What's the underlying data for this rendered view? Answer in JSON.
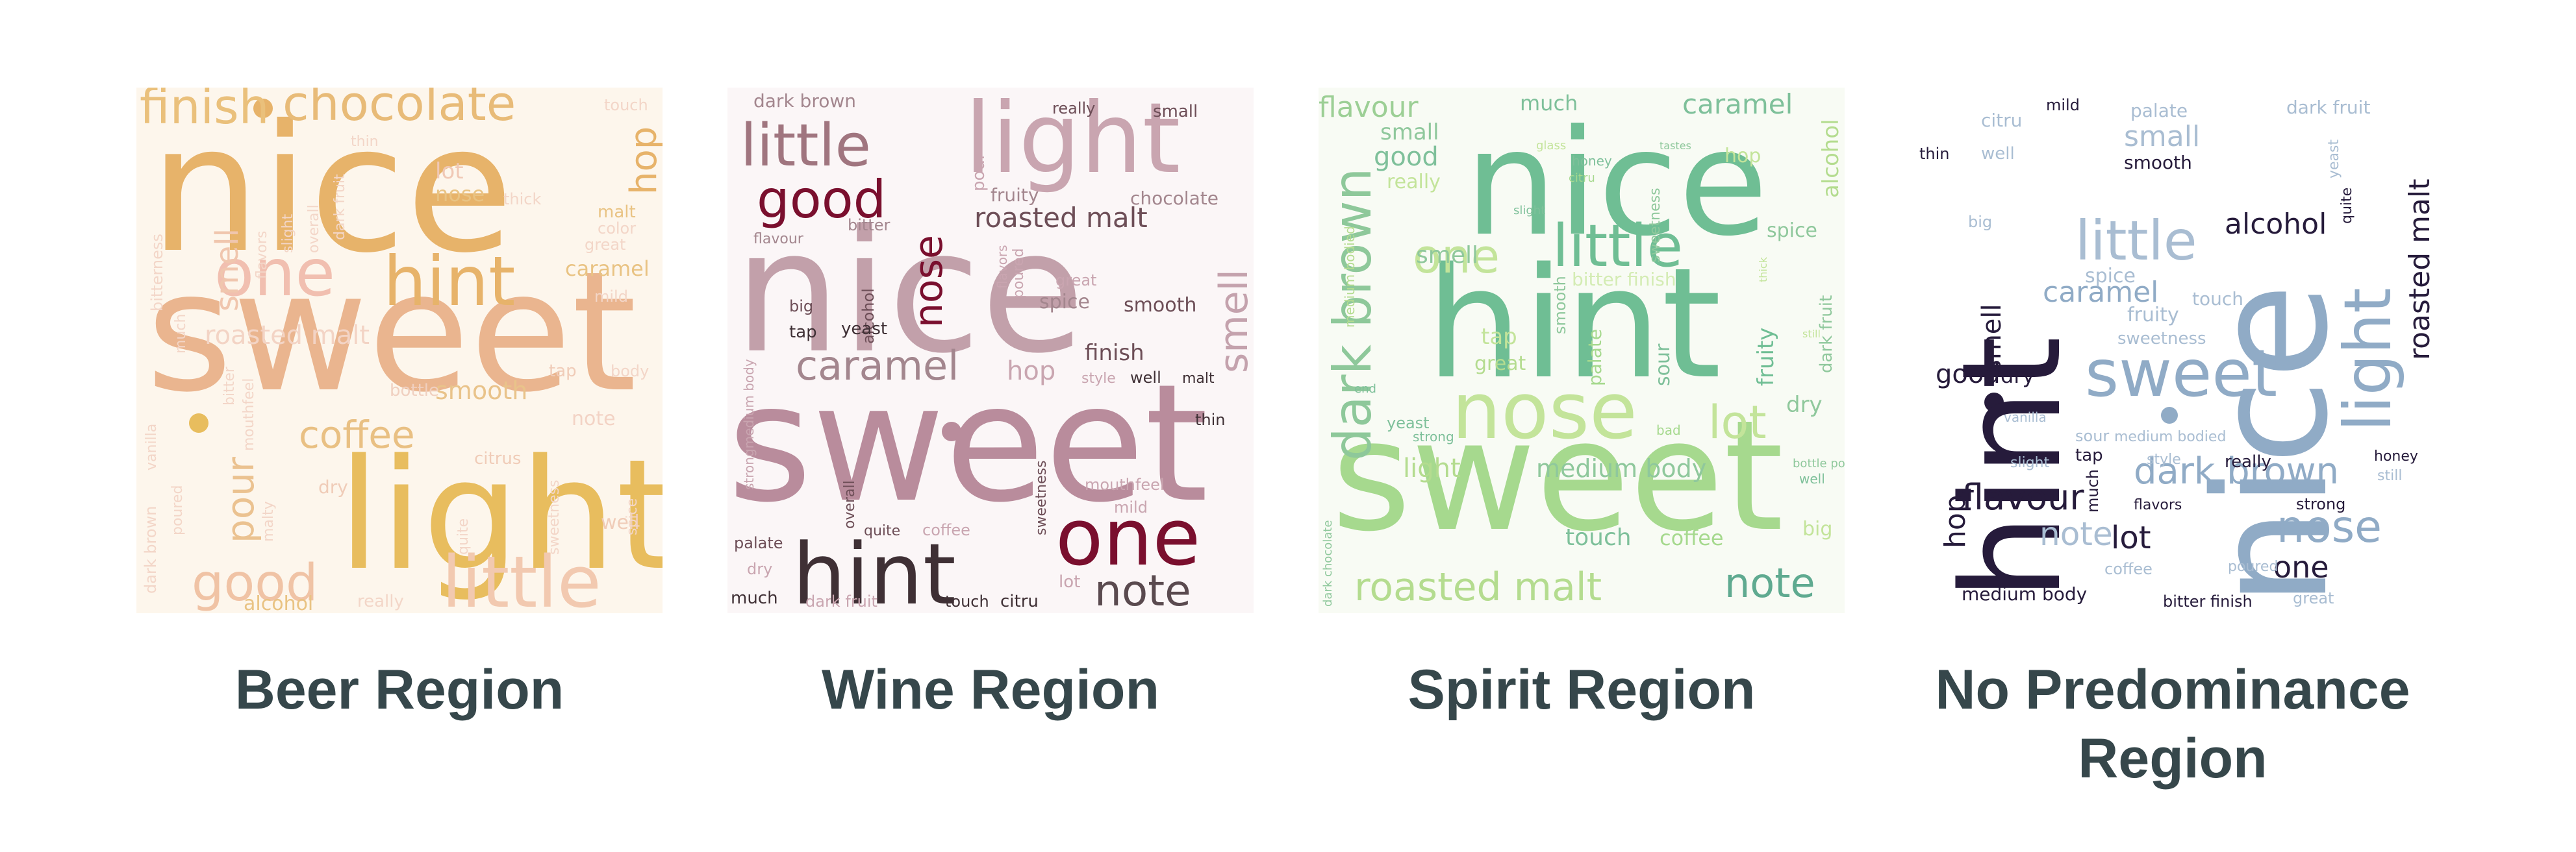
{
  "panels": [
    {
      "caption": [
        "Beer Region"
      ],
      "background": "#fdf6ec",
      "words": [
        {
          "t": "nice",
          "s": 270,
          "c": "#e7b36a"
        },
        {
          "t": "sweet",
          "s": 255,
          "c": "#eab58f"
        },
        {
          "t": "light",
          "s": 235,
          "c": "#e8bd5e"
        },
        {
          "t": "little",
          "s": 110,
          "c": "#f2c9b0"
        },
        {
          "t": "hint",
          "s": 105,
          "c": "#e7b36a"
        },
        {
          "t": "one",
          "s": 100,
          "c": "#f1bfb0"
        },
        {
          "t": "chocolate",
          "s": 74,
          "c": "#e8bb78"
        },
        {
          "t": "finish",
          "s": 74,
          "c": "#eac07b"
        },
        {
          "t": "good",
          "s": 78,
          "c": "#f0c3a5"
        },
        {
          "t": "coffee",
          "s": 58,
          "c": "#e9c083"
        },
        {
          "t": "pour",
          "s": 58,
          "c": "#ebc290"
        },
        {
          "t": "hop",
          "s": 56,
          "c": "#e7b36a",
          "r": -90
        },
        {
          "t": "smell",
          "s": 48,
          "c": "#f0c6ae",
          "r": -90
        },
        {
          "t": "roasted malt",
          "s": 40,
          "c": "#f3d4c5"
        },
        {
          "t": "smooth",
          "s": 38,
          "c": "#e9c38a"
        },
        {
          "t": "lot",
          "s": 34,
          "c": "#f0c8b5"
        },
        {
          "t": "nose",
          "s": 32,
          "c": "#e9c383"
        },
        {
          "t": "caramel",
          "s": 32,
          "c": "#e9c383"
        },
        {
          "t": "note",
          "s": 30,
          "c": "#f3d3c5"
        },
        {
          "t": "alcohol",
          "s": 30,
          "c": "#e9c383"
        },
        {
          "t": "citrus",
          "s": 26,
          "c": "#f0ccb8"
        },
        {
          "t": "well",
          "s": 30,
          "c": "#f0ccb8"
        },
        {
          "t": "bottle",
          "s": 26,
          "c": "#f0d0c0"
        },
        {
          "t": "tap",
          "s": 26,
          "c": "#f0ccb8"
        },
        {
          "t": "body",
          "s": 24,
          "c": "#f3d6c8"
        },
        {
          "t": "great",
          "s": 24,
          "c": "#f3d6c8"
        },
        {
          "t": "mild",
          "s": 24,
          "c": "#f3d6c8"
        },
        {
          "t": "thick",
          "s": 24,
          "c": "#f3d6c8"
        },
        {
          "t": "malt",
          "s": 26,
          "c": "#e9c383"
        },
        {
          "t": "color",
          "s": 24,
          "c": "#f3d6c8"
        },
        {
          "t": "touch",
          "s": 24,
          "c": "#f3d6c8"
        },
        {
          "t": "thin",
          "s": 22,
          "c": "#f3d6c8"
        },
        {
          "t": "really",
          "s": 26,
          "c": "#f3d6c8"
        },
        {
          "t": "dry",
          "s": 28,
          "c": "#f0ccb8"
        },
        {
          "t": "quite",
          "s": 22,
          "c": "#f3d6c8",
          "r": -90
        },
        {
          "t": "sweetness",
          "s": 22,
          "c": "#f3d6c8",
          "r": -90
        },
        {
          "t": "spice",
          "s": 22,
          "c": "#f3d6c8",
          "r": -90
        },
        {
          "t": "dark brown",
          "s": 24,
          "c": "#f3d6c8",
          "r": -90
        },
        {
          "t": "poured",
          "s": 22,
          "c": "#f3d6c8",
          "r": -90
        },
        {
          "t": "mouthfeel",
          "s": 22,
          "c": "#f3d6c8",
          "r": -90
        },
        {
          "t": "malty",
          "s": 22,
          "c": "#f3d6c8",
          "r": -90
        },
        {
          "t": "vanilla",
          "s": 22,
          "c": "#f3d6c8",
          "r": -90
        },
        {
          "t": "much",
          "s": 22,
          "c": "#f3d6c8",
          "r": -90
        },
        {
          "t": "bitterness",
          "s": 24,
          "c": "#f3d6c8",
          "r": -90
        },
        {
          "t": "bitter",
          "s": 22,
          "c": "#f3d6c8",
          "r": -90
        },
        {
          "t": "flavors",
          "s": 22,
          "c": "#f3d6c8",
          "r": -90
        },
        {
          "t": "slight",
          "s": 22,
          "c": "#f3d6c8",
          "r": -90
        },
        {
          "t": "overall",
          "s": 22,
          "c": "#f3d6c8",
          "r": -90
        },
        {
          "t": "dark fruit",
          "s": 22,
          "c": "#f3d6c8",
          "r": -90
        }
      ]
    },
    {
      "caption": [
        "Wine Region"
      ],
      "background": "#fbf6f7",
      "words": [
        {
          "t": "nice",
          "s": 260,
          "c": "#c2a0aa"
        },
        {
          "t": "sweet",
          "s": 250,
          "c": "#b98c9c"
        },
        {
          "t": "light",
          "s": 150,
          "c": "#c9a5b0"
        },
        {
          "t": "hint",
          "s": 130,
          "c": "#3f3035"
        },
        {
          "t": "one",
          "s": 120,
          "c": "#7a0f2e"
        },
        {
          "t": "little",
          "s": 90,
          "c": "#a0757f"
        },
        {
          "t": "good",
          "s": 80,
          "c": "#7a0f2e"
        },
        {
          "t": "note",
          "s": 66,
          "c": "#5a4a4f"
        },
        {
          "t": "caramel",
          "s": 62,
          "c": "#a3868e"
        },
        {
          "t": "smell",
          "s": 60,
          "c": "#c4a2ad",
          "r": -90
        },
        {
          "t": "nose",
          "s": 60,
          "c": "#7a0f2e",
          "r": -90
        },
        {
          "t": "roasted malt",
          "s": 42,
          "c": "#6d4e57"
        },
        {
          "t": "hop",
          "s": 40,
          "c": "#c9a5b0"
        },
        {
          "t": "finish",
          "s": 34,
          "c": "#6d4e57"
        },
        {
          "t": "smooth",
          "s": 30,
          "c": "#6d4e57"
        },
        {
          "t": "spice",
          "s": 30,
          "c": "#a3868e"
        },
        {
          "t": "chocolate",
          "s": 28,
          "c": "#a3868e"
        },
        {
          "t": "fruity",
          "s": 28,
          "c": "#a3868e"
        },
        {
          "t": "pour",
          "s": 26,
          "c": "#c9a5b0",
          "r": -90
        },
        {
          "t": "small",
          "s": 26,
          "c": "#6d4e57"
        },
        {
          "t": "really",
          "s": 24,
          "c": "#6d4e57"
        },
        {
          "t": "dark brown",
          "s": 28,
          "c": "#a3868e"
        },
        {
          "t": "bitter",
          "s": 24,
          "c": "#a3868e"
        },
        {
          "t": "flavour",
          "s": 22,
          "c": "#a3868e"
        },
        {
          "t": "alcohol",
          "s": 24,
          "c": "#6d4e57",
          "r": -90
        },
        {
          "t": "yeast",
          "s": 26,
          "c": "#3f3035"
        },
        {
          "t": "big",
          "s": 24,
          "c": "#6d4e57"
        },
        {
          "t": "tap",
          "s": 26,
          "c": "#3f3035"
        },
        {
          "t": "great",
          "s": 24,
          "c": "#c9a5b0"
        },
        {
          "t": "poured",
          "s": 22,
          "c": "#c9a5b0",
          "r": -90
        },
        {
          "t": "flavors",
          "s": 20,
          "c": "#c9a5b0",
          "r": -90
        },
        {
          "t": "style",
          "s": 22,
          "c": "#c9a5b0"
        },
        {
          "t": "well",
          "s": 24,
          "c": "#3f3035"
        },
        {
          "t": "malt",
          "s": 22,
          "c": "#3f3035"
        },
        {
          "t": "thin",
          "s": 24,
          "c": "#3f3035"
        },
        {
          "t": "mouthfeel",
          "s": 24,
          "c": "#c9a5b0"
        },
        {
          "t": "mild",
          "s": 24,
          "c": "#c9a5b0"
        },
        {
          "t": "sweetness",
          "s": 22,
          "c": "#6d4e57",
          "r": -90
        },
        {
          "t": "coffee",
          "s": 24,
          "c": "#c9a5b0"
        },
        {
          "t": "quite",
          "s": 22,
          "c": "#6d4e57"
        },
        {
          "t": "overall",
          "s": 22,
          "c": "#6d4e57",
          "r": -90
        },
        {
          "t": "palate",
          "s": 24,
          "c": "#6d4e57"
        },
        {
          "t": "dry",
          "s": 24,
          "c": "#c9a5b0"
        },
        {
          "t": "much",
          "s": 26,
          "c": "#3f3035"
        },
        {
          "t": "dark fruit",
          "s": 24,
          "c": "#c9a5b0"
        },
        {
          "t": "touch",
          "s": 24,
          "c": "#3f3035"
        },
        {
          "t": "citru",
          "s": 26,
          "c": "#3f3035"
        },
        {
          "t": "lot",
          "s": 26,
          "c": "#c9a5b0"
        },
        {
          "t": "strongmedium body",
          "s": 20,
          "c": "#c9a5b0",
          "r": -90
        }
      ]
    },
    {
      "caption": [
        "Spirit Region"
      ],
      "background": "#f8fbf4",
      "words": [
        {
          "t": "nice",
          "s": 225,
          "c": "#6fbe94"
        },
        {
          "t": "hint",
          "s": 235,
          "c": "#6fbe94"
        },
        {
          "t": "sweet",
          "s": 235,
          "c": "#a6d98e"
        },
        {
          "t": "nose",
          "s": 120,
          "c": "#c3e49a"
        },
        {
          "t": "little",
          "s": 90,
          "c": "#6fbe94"
        },
        {
          "t": "one",
          "s": 72,
          "c": "#c3e49a"
        },
        {
          "t": "dark brown",
          "s": 80,
          "c": "#8ec89a",
          "r": -90
        },
        {
          "t": "lot",
          "s": 70,
          "c": "#c3e49a"
        },
        {
          "t": "roasted malt",
          "s": 60,
          "c": "#b4dc8f"
        },
        {
          "t": "note",
          "s": 62,
          "c": "#5faa90"
        },
        {
          "t": "flavour",
          "s": 44,
          "c": "#9ccf95"
        },
        {
          "t": "caramel",
          "s": 42,
          "c": "#7ec09a"
        },
        {
          "t": "good",
          "s": 40,
          "c": "#7ec09a"
        },
        {
          "t": "small",
          "s": 34,
          "c": "#8fc89c"
        },
        {
          "t": "much",
          "s": 32,
          "c": "#7ec09a"
        },
        {
          "t": "alcohol",
          "s": 34,
          "c": "#b4dc8f",
          "r": -90
        },
        {
          "t": "hop",
          "s": 30,
          "c": "#c3e49a"
        },
        {
          "t": "spice",
          "s": 30,
          "c": "#8fc89c"
        },
        {
          "t": "smell",
          "s": 36,
          "c": "#8fc89c"
        },
        {
          "t": "bitter finish",
          "s": 28,
          "c": "#d4ecb4"
        },
        {
          "t": "fruity",
          "s": 34,
          "c": "#6fbe94",
          "r": -90
        },
        {
          "t": "light",
          "s": 40,
          "c": "#b4dc8f"
        },
        {
          "t": "medium body",
          "s": 38,
          "c": "#8fc89c"
        },
        {
          "t": "touch",
          "s": 36,
          "c": "#7ec09a"
        },
        {
          "t": "coffee",
          "s": 32,
          "c": "#a6d98e"
        },
        {
          "t": "tap",
          "s": 34,
          "c": "#c3e49a"
        },
        {
          "t": "great",
          "s": 30,
          "c": "#b4dc8f"
        },
        {
          "t": "sour",
          "s": 30,
          "c": "#7ec09a",
          "r": -90
        },
        {
          "t": "palate",
          "s": 28,
          "c": "#a6d98e",
          "r": -90
        },
        {
          "t": "smooth",
          "s": 24,
          "c": "#8fc89c",
          "r": -90
        },
        {
          "t": "sweetness",
          "s": 22,
          "c": "#8fc89c",
          "r": -90
        },
        {
          "t": "dark fruit",
          "s": 26,
          "c": "#8fc89c",
          "r": -90
        },
        {
          "t": "medium bodied",
          "s": 20,
          "c": "#b4dc8f",
          "r": -90
        },
        {
          "t": "dry",
          "s": 34,
          "c": "#8fc89c"
        },
        {
          "t": "big",
          "s": 30,
          "c": "#c3e49a"
        },
        {
          "t": "really",
          "s": 30,
          "c": "#c3e49a"
        },
        {
          "t": "yeast",
          "s": 24,
          "c": "#7ec09a"
        },
        {
          "t": "strong",
          "s": 20,
          "c": "#7ec09a"
        },
        {
          "t": "bad",
          "s": 20,
          "c": "#a6d98e"
        },
        {
          "t": "honey",
          "s": 20,
          "c": "#7ec09a"
        },
        {
          "t": "glass",
          "s": 18,
          "c": "#c3e49a"
        },
        {
          "t": "citru",
          "s": 18,
          "c": "#a6d98e"
        },
        {
          "t": "slight",
          "s": 18,
          "c": "#7ec09a"
        },
        {
          "t": "end",
          "s": 18,
          "c": "#7ec09a"
        },
        {
          "t": "well",
          "s": 20,
          "c": "#7ec09a"
        },
        {
          "t": "bottle pour",
          "s": 18,
          "c": "#8fc89c"
        },
        {
          "t": "still",
          "s": 16,
          "c": "#c3e49a"
        },
        {
          "t": "dark chocolate",
          "s": 18,
          "c": "#8fc89c",
          "r": -90
        },
        {
          "t": "tastes",
          "s": 16,
          "c": "#8fc89c"
        },
        {
          "t": "thick",
          "s": 16,
          "c": "#c3e49a",
          "r": -90
        }
      ]
    },
    {
      "caption": [
        "No Predominance",
        "Region"
      ],
      "background": "#ffffff",
      "words": [
        {
          "t": "hint",
          "s": 210,
          "c": "#261b3b",
          "r": -90
        },
        {
          "t": "nice",
          "s": 240,
          "c": "#90abc6",
          "r": -90
        },
        {
          "t": "sweet",
          "s": 100,
          "c": "#90abc6"
        },
        {
          "t": "little",
          "s": 84,
          "c": "#a9bdd2"
        },
        {
          "t": "light",
          "s": 100,
          "c": "#90abc6",
          "r": -90
        },
        {
          "t": "nose",
          "s": 68,
          "c": "#90abc6"
        },
        {
          "t": "dark brown",
          "s": 56,
          "c": "#90abc6"
        },
        {
          "t": "flavour",
          "s": 54,
          "c": "#261b3b"
        },
        {
          "t": "roasted malt",
          "s": 44,
          "c": "#261b3b",
          "r": -90
        },
        {
          "t": "alcohol",
          "s": 44,
          "c": "#261b3b"
        },
        {
          "t": "note",
          "s": 50,
          "c": "#a9bdd2"
        },
        {
          "t": "lot",
          "s": 48,
          "c": "#261b3b"
        },
        {
          "t": "one",
          "s": 46,
          "c": "#261b3b"
        },
        {
          "t": "caramel",
          "s": 44,
          "c": "#90abc6"
        },
        {
          "t": "small",
          "s": 44,
          "c": "#a9bdd2"
        },
        {
          "t": "hop",
          "s": 44,
          "c": "#261b3b",
          "r": -90
        },
        {
          "t": "smell",
          "s": 40,
          "c": "#261b3b",
          "r": -90
        },
        {
          "t": "good",
          "s": 40,
          "c": "#261b3b"
        },
        {
          "t": "dry",
          "s": 32,
          "c": "#261b3b"
        },
        {
          "t": "spice",
          "s": 30,
          "c": "#a9bdd2"
        },
        {
          "t": "touch",
          "s": 28,
          "c": "#a9bdd2"
        },
        {
          "t": "fruity",
          "s": 30,
          "c": "#a9bdd2"
        },
        {
          "t": "sweetness",
          "s": 26,
          "c": "#a9bdd2"
        },
        {
          "t": "smooth",
          "s": 28,
          "c": "#261b3b"
        },
        {
          "t": "palate",
          "s": 28,
          "c": "#a9bdd2"
        },
        {
          "t": "dark fruit",
          "s": 28,
          "c": "#a9bdd2"
        },
        {
          "t": "citru",
          "s": 28,
          "c": "#a9bdd2"
        },
        {
          "t": "mild",
          "s": 24,
          "c": "#261b3b"
        },
        {
          "t": "thin",
          "s": 24,
          "c": "#261b3b"
        },
        {
          "t": "well",
          "s": 26,
          "c": "#a9bdd2"
        },
        {
          "t": "big",
          "s": 24,
          "c": "#a9bdd2"
        },
        {
          "t": "quite",
          "s": 22,
          "c": "#261b3b",
          "r": -90
        },
        {
          "t": "yeast",
          "s": 22,
          "c": "#a9bdd2",
          "r": -90
        },
        {
          "t": "honey",
          "s": 22,
          "c": "#261b3b"
        },
        {
          "t": "still",
          "s": 22,
          "c": "#a9bdd2"
        },
        {
          "t": "really",
          "s": 26,
          "c": "#261b3b"
        },
        {
          "t": "style",
          "s": 22,
          "c": "#a9bdd2"
        },
        {
          "t": "strong",
          "s": 24,
          "c": "#261b3b"
        },
        {
          "t": "sour",
          "s": 24,
          "c": "#a9bdd2"
        },
        {
          "t": "medium bodied",
          "s": 22,
          "c": "#a9bdd2"
        },
        {
          "t": "tap",
          "s": 26,
          "c": "#261b3b"
        },
        {
          "t": "slight",
          "s": 22,
          "c": "#a9bdd2"
        },
        {
          "t": "vanilla",
          "s": 20,
          "c": "#a9bdd2"
        },
        {
          "t": "much",
          "s": 24,
          "c": "#261b3b",
          "r": -90
        },
        {
          "t": "flavors",
          "s": 22,
          "c": "#261b3b"
        },
        {
          "t": "coffee",
          "s": 24,
          "c": "#a9bdd2"
        },
        {
          "t": "poured",
          "s": 22,
          "c": "#a9bdd2"
        },
        {
          "t": "medium body",
          "s": 28,
          "c": "#261b3b"
        },
        {
          "t": "bitter finish",
          "s": 24,
          "c": "#261b3b"
        },
        {
          "t": "great",
          "s": 24,
          "c": "#a9bdd2"
        }
      ]
    }
  ]
}
